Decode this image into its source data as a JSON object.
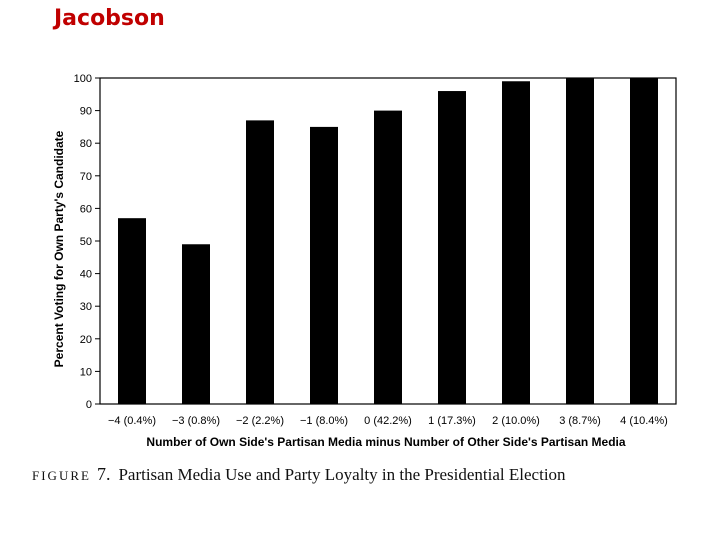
{
  "slide": {
    "title": "Jacobson"
  },
  "caption": {
    "label": "FIGURE",
    "number": "7.",
    "text": "Partisan Media Use and Party Loyalty in the Presidential Election"
  },
  "colors": {
    "title": "#c00000",
    "bars": "#000000",
    "axis": "#000000"
  },
  "chart_data": {
    "type": "bar",
    "title": "",
    "xlabel": "Number of Own Side's Partisan Media minus Number of Other Side's Partisan Media",
    "ylabel": "Percent Voting for Own Party's Candidate",
    "categories": [
      "−4 (0.4%)",
      "−3 (0.8%)",
      "−2 (2.2%)",
      "−1 (8.0%)",
      "0 (42.2%)",
      "1 (17.3%)",
      "2 (10.0%)",
      "3 (8.7%)",
      "4 (10.4%)"
    ],
    "values": [
      57,
      49,
      87,
      85,
      90,
      96,
      99,
      100,
      100
    ],
    "ylim": [
      0,
      100
    ],
    "yticks": [
      "0",
      "10",
      "20",
      "30",
      "40",
      "50",
      "60",
      "70",
      "80",
      "90",
      "100"
    ],
    "grid": false
  }
}
